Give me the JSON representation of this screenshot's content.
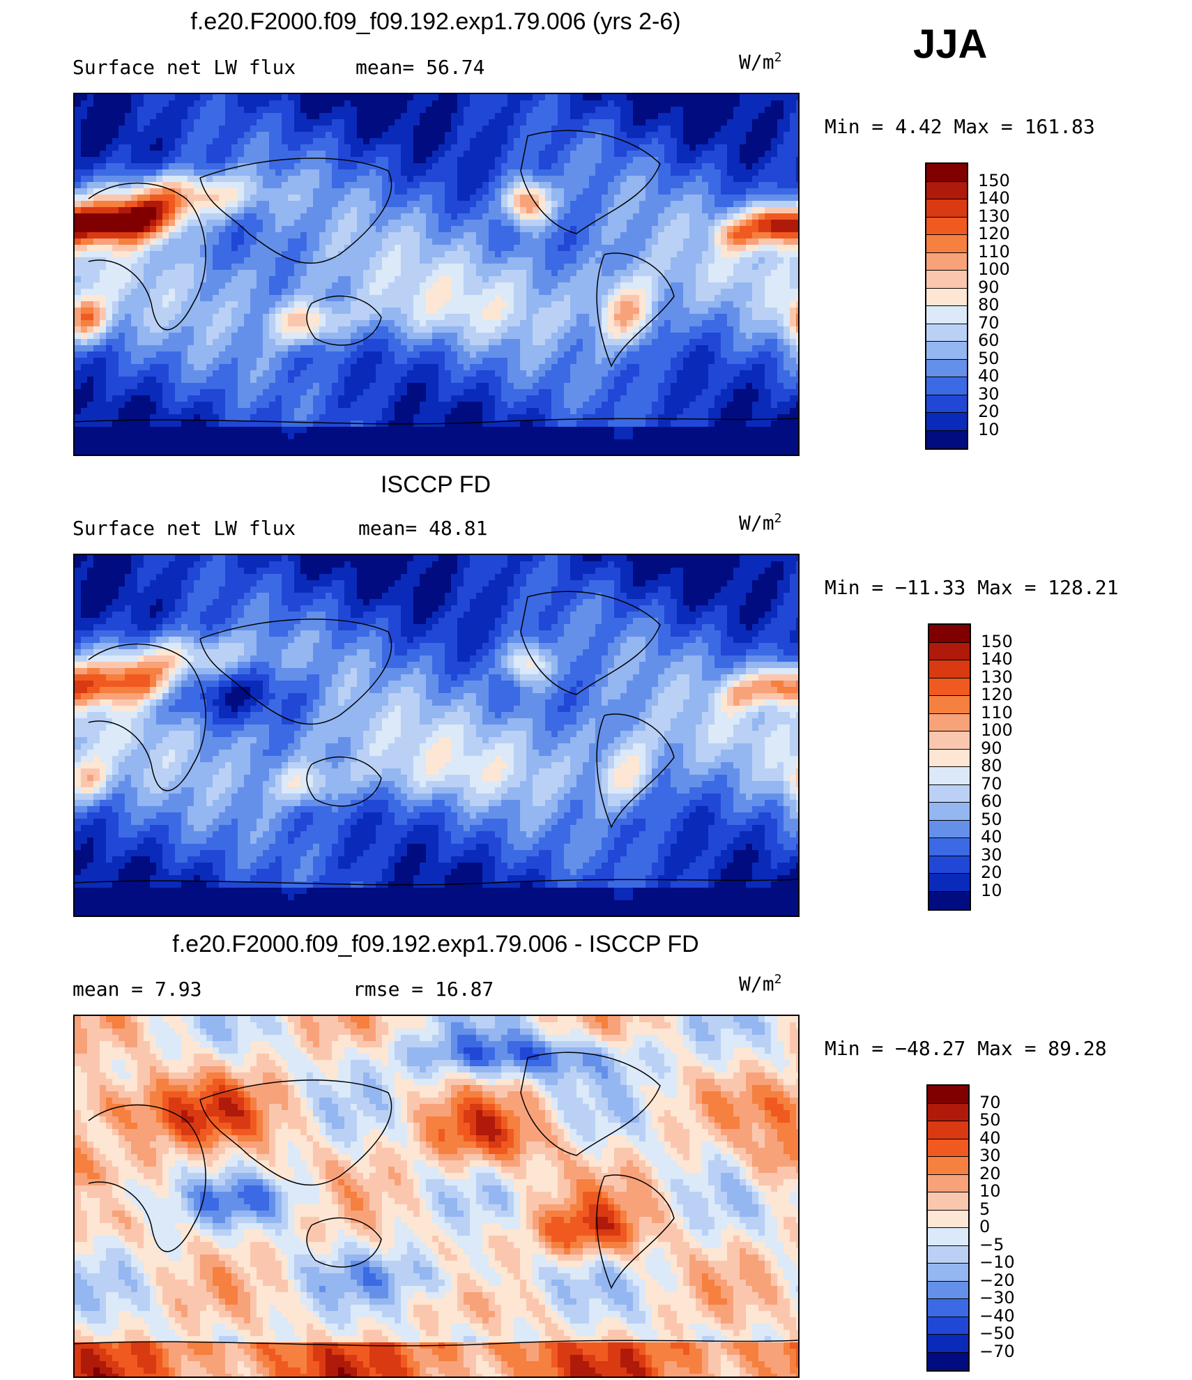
{
  "season": "JJA",
  "panels": [
    {
      "title": "f.e20.F2000.f09_f09.192.exp1.79.006 (yrs 2-6)",
      "stat_left": "Surface net LW flux",
      "stat_mid": "mean=  56.74",
      "units": "W/m",
      "units_exp": "2",
      "minmax": "Min =    4.42 Max =  161.83",
      "colorbar_labels": [
        "150",
        "140",
        "130",
        "120",
        "110",
        "100",
        "90",
        "80",
        "70",
        "60",
        "50",
        "40",
        "30",
        "20",
        "10"
      ],
      "colorbar_colors": [
        "#800000",
        "#b01a0a",
        "#d93a12",
        "#f05a20",
        "#f6803f",
        "#f8a27a",
        "#fac7ae",
        "#fde6d3",
        "#dbe9f8",
        "#bad1f5",
        "#94b6f1",
        "#6590ea",
        "#3c6ae4",
        "#2147d6",
        "#0a2aba",
        "#000c80"
      ],
      "field": "model"
    },
    {
      "title": "ISCCP FD",
      "stat_left": "Surface net LW flux",
      "stat_mid": "mean=  48.81",
      "units": "W/m",
      "units_exp": "2",
      "minmax": "Min = −11.33 Max =  128.21",
      "colorbar_labels": [
        "150",
        "140",
        "130",
        "120",
        "110",
        "100",
        "90",
        "80",
        "70",
        "60",
        "50",
        "40",
        "30",
        "20",
        "10"
      ],
      "colorbar_colors": [
        "#800000",
        "#b01a0a",
        "#d93a12",
        "#f05a20",
        "#f6803f",
        "#f8a27a",
        "#fac7ae",
        "#fde6d3",
        "#dbe9f8",
        "#bad1f5",
        "#94b6f1",
        "#6590ea",
        "#3c6ae4",
        "#2147d6",
        "#0a2aba",
        "#000c80"
      ],
      "field": "obs"
    },
    {
      "title": "f.e20.F2000.f09_f09.192.exp1.79.006 - ISCCP FD",
      "stat_left": "mean =    7.93",
      "stat_mid": "rmse =   16.87",
      "units": "W/m",
      "units_exp": "2",
      "minmax": "Min = −48.27 Max =   89.28",
      "colorbar_labels": [
        "70",
        "50",
        "40",
        "30",
        "20",
        "10",
        "5",
        "0",
        "−5",
        "−10",
        "−20",
        "−30",
        "−40",
        "−50",
        "−70"
      ],
      "colorbar_colors": [
        "#800000",
        "#b01a0a",
        "#d93a12",
        "#f05a20",
        "#f6803f",
        "#f8a27a",
        "#fac7ae",
        "#fde6d3",
        "#dbe9f8",
        "#bad1f5",
        "#94b6f1",
        "#6590ea",
        "#3c6ae4",
        "#2147d6",
        "#0a2aba",
        "#000c80"
      ],
      "field": "diff"
    }
  ]
}
